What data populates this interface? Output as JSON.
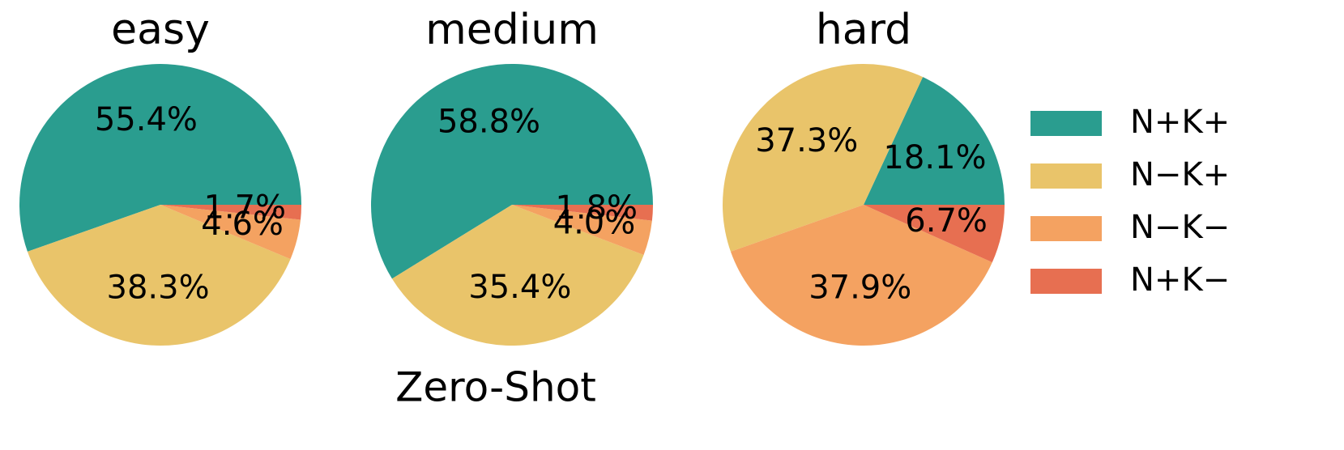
{
  "chart_data": [
    {
      "type": "pie",
      "title": "easy",
      "values": [
        55.4,
        38.3,
        4.6,
        1.7
      ],
      "value_labels": [
        "55.4%",
        "38.3%",
        "4.6%",
        "1.7%"
      ]
    },
    {
      "type": "pie",
      "title": "medium",
      "values": [
        58.8,
        35.4,
        4.0,
        1.8
      ],
      "value_labels": [
        "58.8%",
        "35.4%",
        "4.0%",
        "1.8%"
      ]
    },
    {
      "type": "pie",
      "title": "hard",
      "values": [
        18.1,
        37.3,
        37.9,
        6.7
      ],
      "value_labels": [
        "18.1%",
        "37.3%",
        "37.9%",
        "6.7%"
      ]
    }
  ],
  "legend": {
    "labels": [
      "N+K+",
      "N−K+",
      "N−K−",
      "N+K−"
    ],
    "colors": [
      "#2a9d8f",
      "#e9c46a",
      "#f4a261",
      "#e76f51"
    ]
  },
  "caption": "Zero-Shot"
}
